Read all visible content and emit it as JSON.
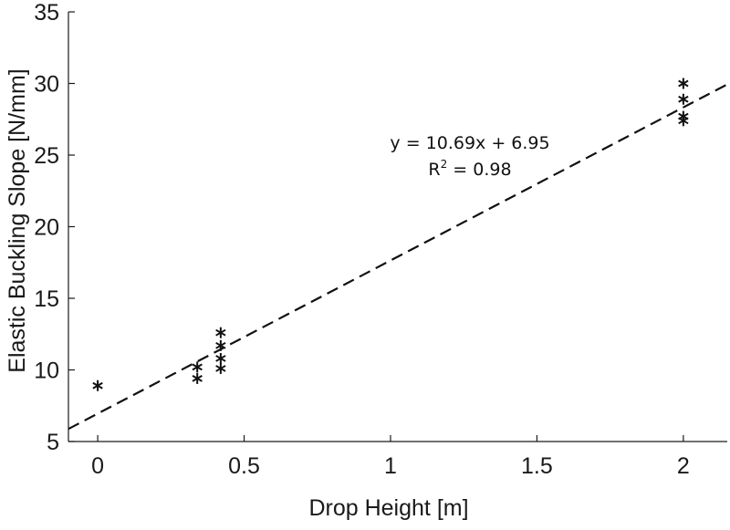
{
  "chart_data": {
    "type": "scatter",
    "title": "",
    "xlabel": "Drop Height [m]",
    "ylabel": "Elastic Buckling Slope [N/mm]",
    "xlim": [
      -0.1,
      2.15
    ],
    "ylim": [
      5,
      35
    ],
    "x_ticks": [
      0,
      0.5,
      1,
      1.5,
      2
    ],
    "x_tick_labels": [
      "0",
      "0.5",
      "1",
      "1.5",
      "2"
    ],
    "y_ticks": [
      5,
      10,
      15,
      20,
      25,
      30,
      35
    ],
    "y_tick_labels": [
      "5",
      "10",
      "15",
      "20",
      "25",
      "30",
      "35"
    ],
    "grid": false,
    "marker": "asterisk",
    "points": [
      {
        "x": 0,
        "y": 8.9
      },
      {
        "x": 0.34,
        "y": 10.2
      },
      {
        "x": 0.34,
        "y": 9.4
      },
      {
        "x": 0.42,
        "y": 12.6
      },
      {
        "x": 0.42,
        "y": 11.7
      },
      {
        "x": 0.42,
        "y": 10.8
      },
      {
        "x": 0.42,
        "y": 10.1
      },
      {
        "x": 2.0,
        "y": 30.0
      },
      {
        "x": 2.0,
        "y": 28.9
      },
      {
        "x": 2.0,
        "y": 27.7
      },
      {
        "x": 2.0,
        "y": 27.4
      }
    ],
    "fit": {
      "slope": 10.69,
      "intercept": 6.95,
      "style": "dashed"
    },
    "annotations": {
      "equation": "y = 10.69x + 6.95",
      "r2_prefix": "R",
      "r2_sup": "2",
      "r2_value": " = 0.98"
    }
  }
}
